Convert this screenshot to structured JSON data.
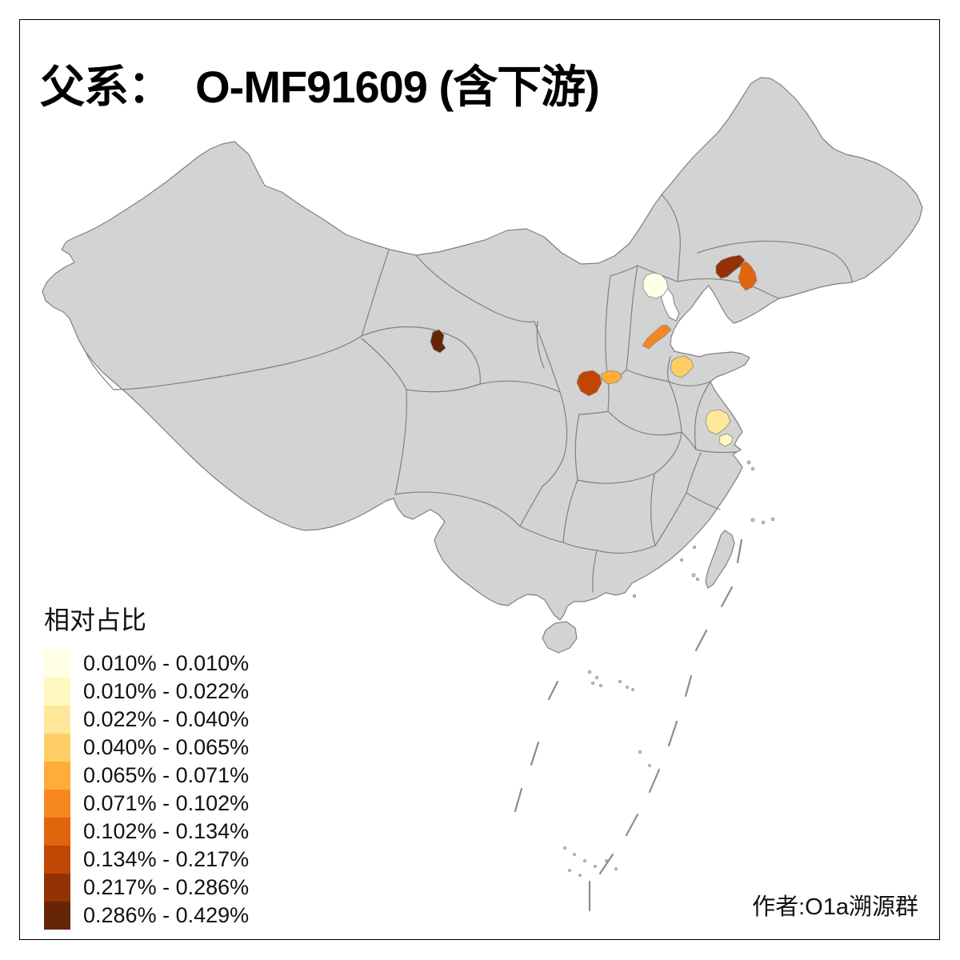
{
  "title": "父系：  O-MF91609 (含下游)",
  "author_credit": "作者:O1a溯源群",
  "legend": {
    "title": "相对占比",
    "classes": [
      {
        "range": "0.010% - 0.010%",
        "color": "#FFFFE5"
      },
      {
        "range": "0.010% - 0.022%",
        "color": "#FFF8C1"
      },
      {
        "range": "0.022% - 0.040%",
        "color": "#FEE79B"
      },
      {
        "range": "0.040% - 0.065%",
        "color": "#FECE65"
      },
      {
        "range": "0.065% - 0.071%",
        "color": "#FEAC3A"
      },
      {
        "range": "0.071% - 0.102%",
        "color": "#F68720"
      },
      {
        "range": "0.102% - 0.134%",
        "color": "#E1640E"
      },
      {
        "range": "0.134% - 0.217%",
        "color": "#C04703"
      },
      {
        "range": "0.217% - 0.286%",
        "color": "#933204"
      },
      {
        "range": "0.286% - 0.429%",
        "color": "#662506"
      }
    ]
  },
  "map": {
    "base_fill": "#D3D3D3",
    "border_color": "#808080",
    "background": "#FFFFFF",
    "no_data_fill": "#FFFFFF",
    "regions": [
      {
        "id": "r1",
        "class_index": 0
      },
      {
        "id": "r2",
        "class_index": 1
      },
      {
        "id": "r3",
        "class_index": 2
      },
      {
        "id": "r4",
        "class_index": 3
      },
      {
        "id": "r5",
        "class_index": 4
      },
      {
        "id": "r6",
        "class_index": 5
      },
      {
        "id": "r7",
        "class_index": 6
      },
      {
        "id": "r8",
        "class_index": 7
      },
      {
        "id": "r9",
        "class_index": 8
      },
      {
        "id": "r10",
        "class_index": 9
      }
    ]
  }
}
